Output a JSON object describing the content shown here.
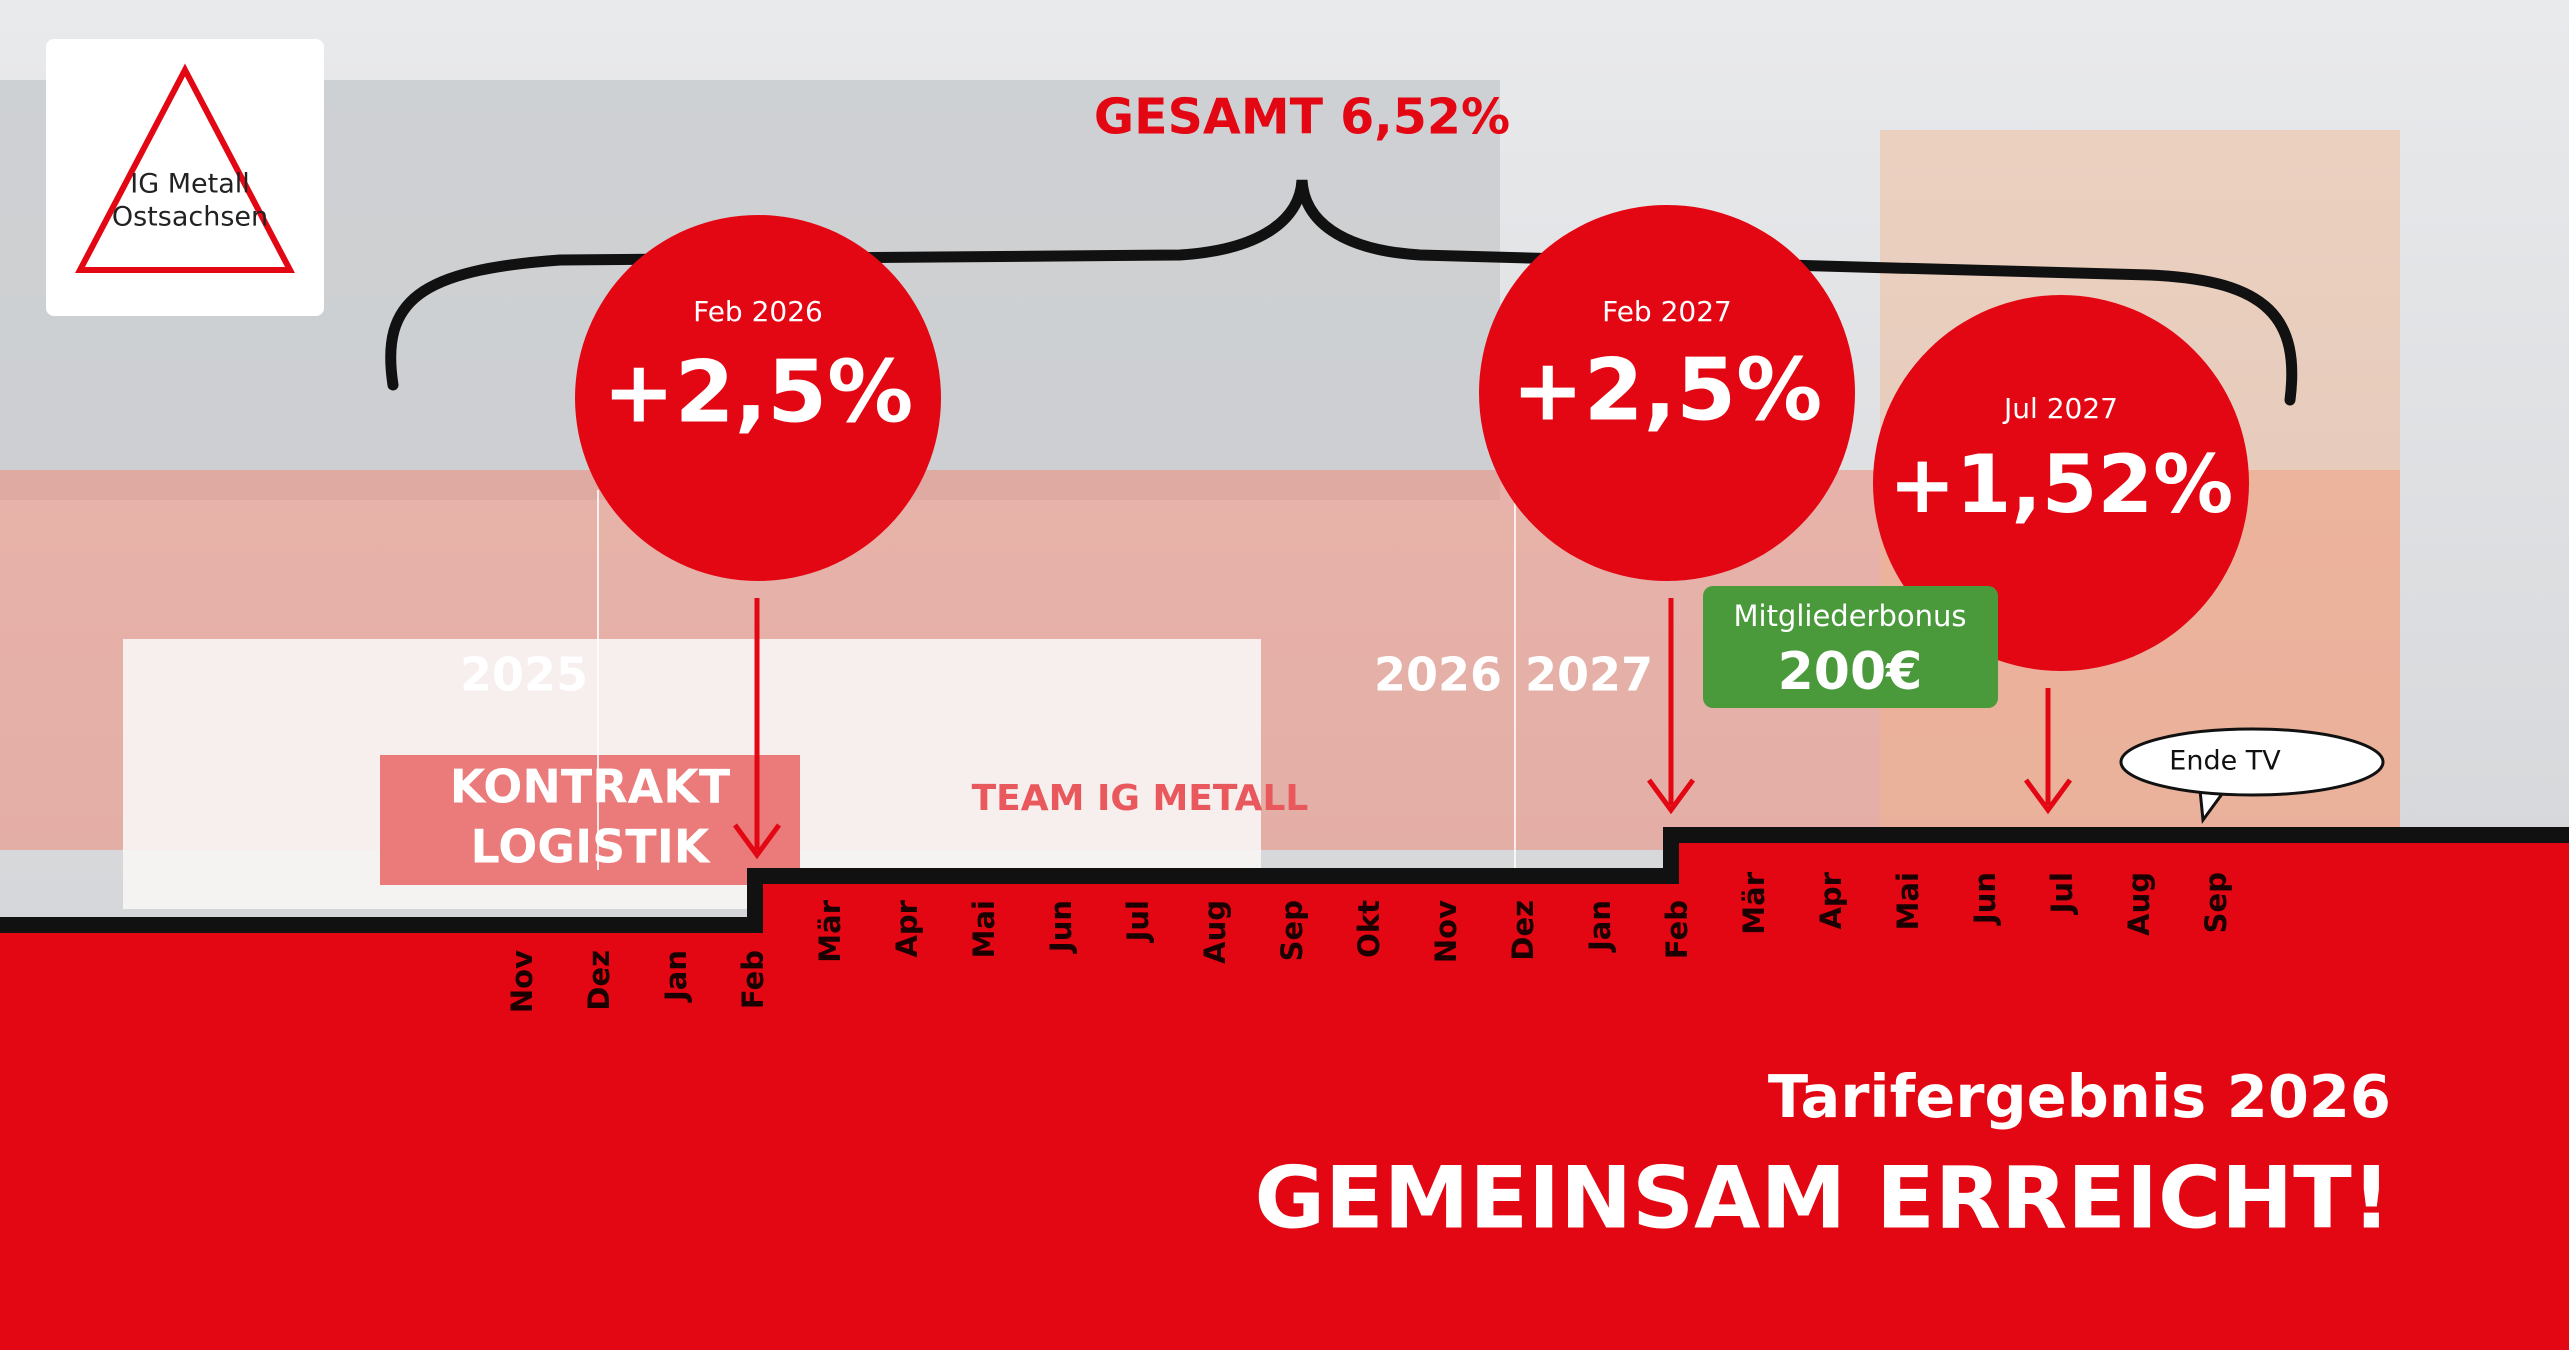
{
  "logo": {
    "line1": "IG Metall",
    "line2": "Ostsachsen"
  },
  "total": "GESAMT 6,52%",
  "steps": [
    {
      "date": "Feb 2026",
      "increase": "+2,5%"
    },
    {
      "date": "Feb 2027",
      "increase": "+2,5%"
    },
    {
      "date": "Jul 2027",
      "increase": "+1,52%"
    }
  ],
  "bonus": {
    "label": "Mitgliederbonus",
    "amount": "200€"
  },
  "end_label": "Ende TV",
  "years": [
    "2025",
    "2026",
    "2027"
  ],
  "months": [
    "Nov",
    "Dez",
    "Jan",
    "Feb",
    "Mär",
    "Apr",
    "Mai",
    "Jun",
    "Jul",
    "Aug",
    "Sep",
    "Okt",
    "Nov",
    "Dez",
    "Jan",
    "Feb",
    "Mär",
    "Apr",
    "Mai",
    "Jun",
    "Jul",
    "Aug",
    "Sep"
  ],
  "banner": {
    "line1": "KONTRAKT",
    "line2": "LOGISTIK",
    "team": "TEAM IG METALL"
  },
  "headline": {
    "subtitle": "Tarifergebnis 2026",
    "title": "GEMEINSAM ERREICHT!"
  }
}
